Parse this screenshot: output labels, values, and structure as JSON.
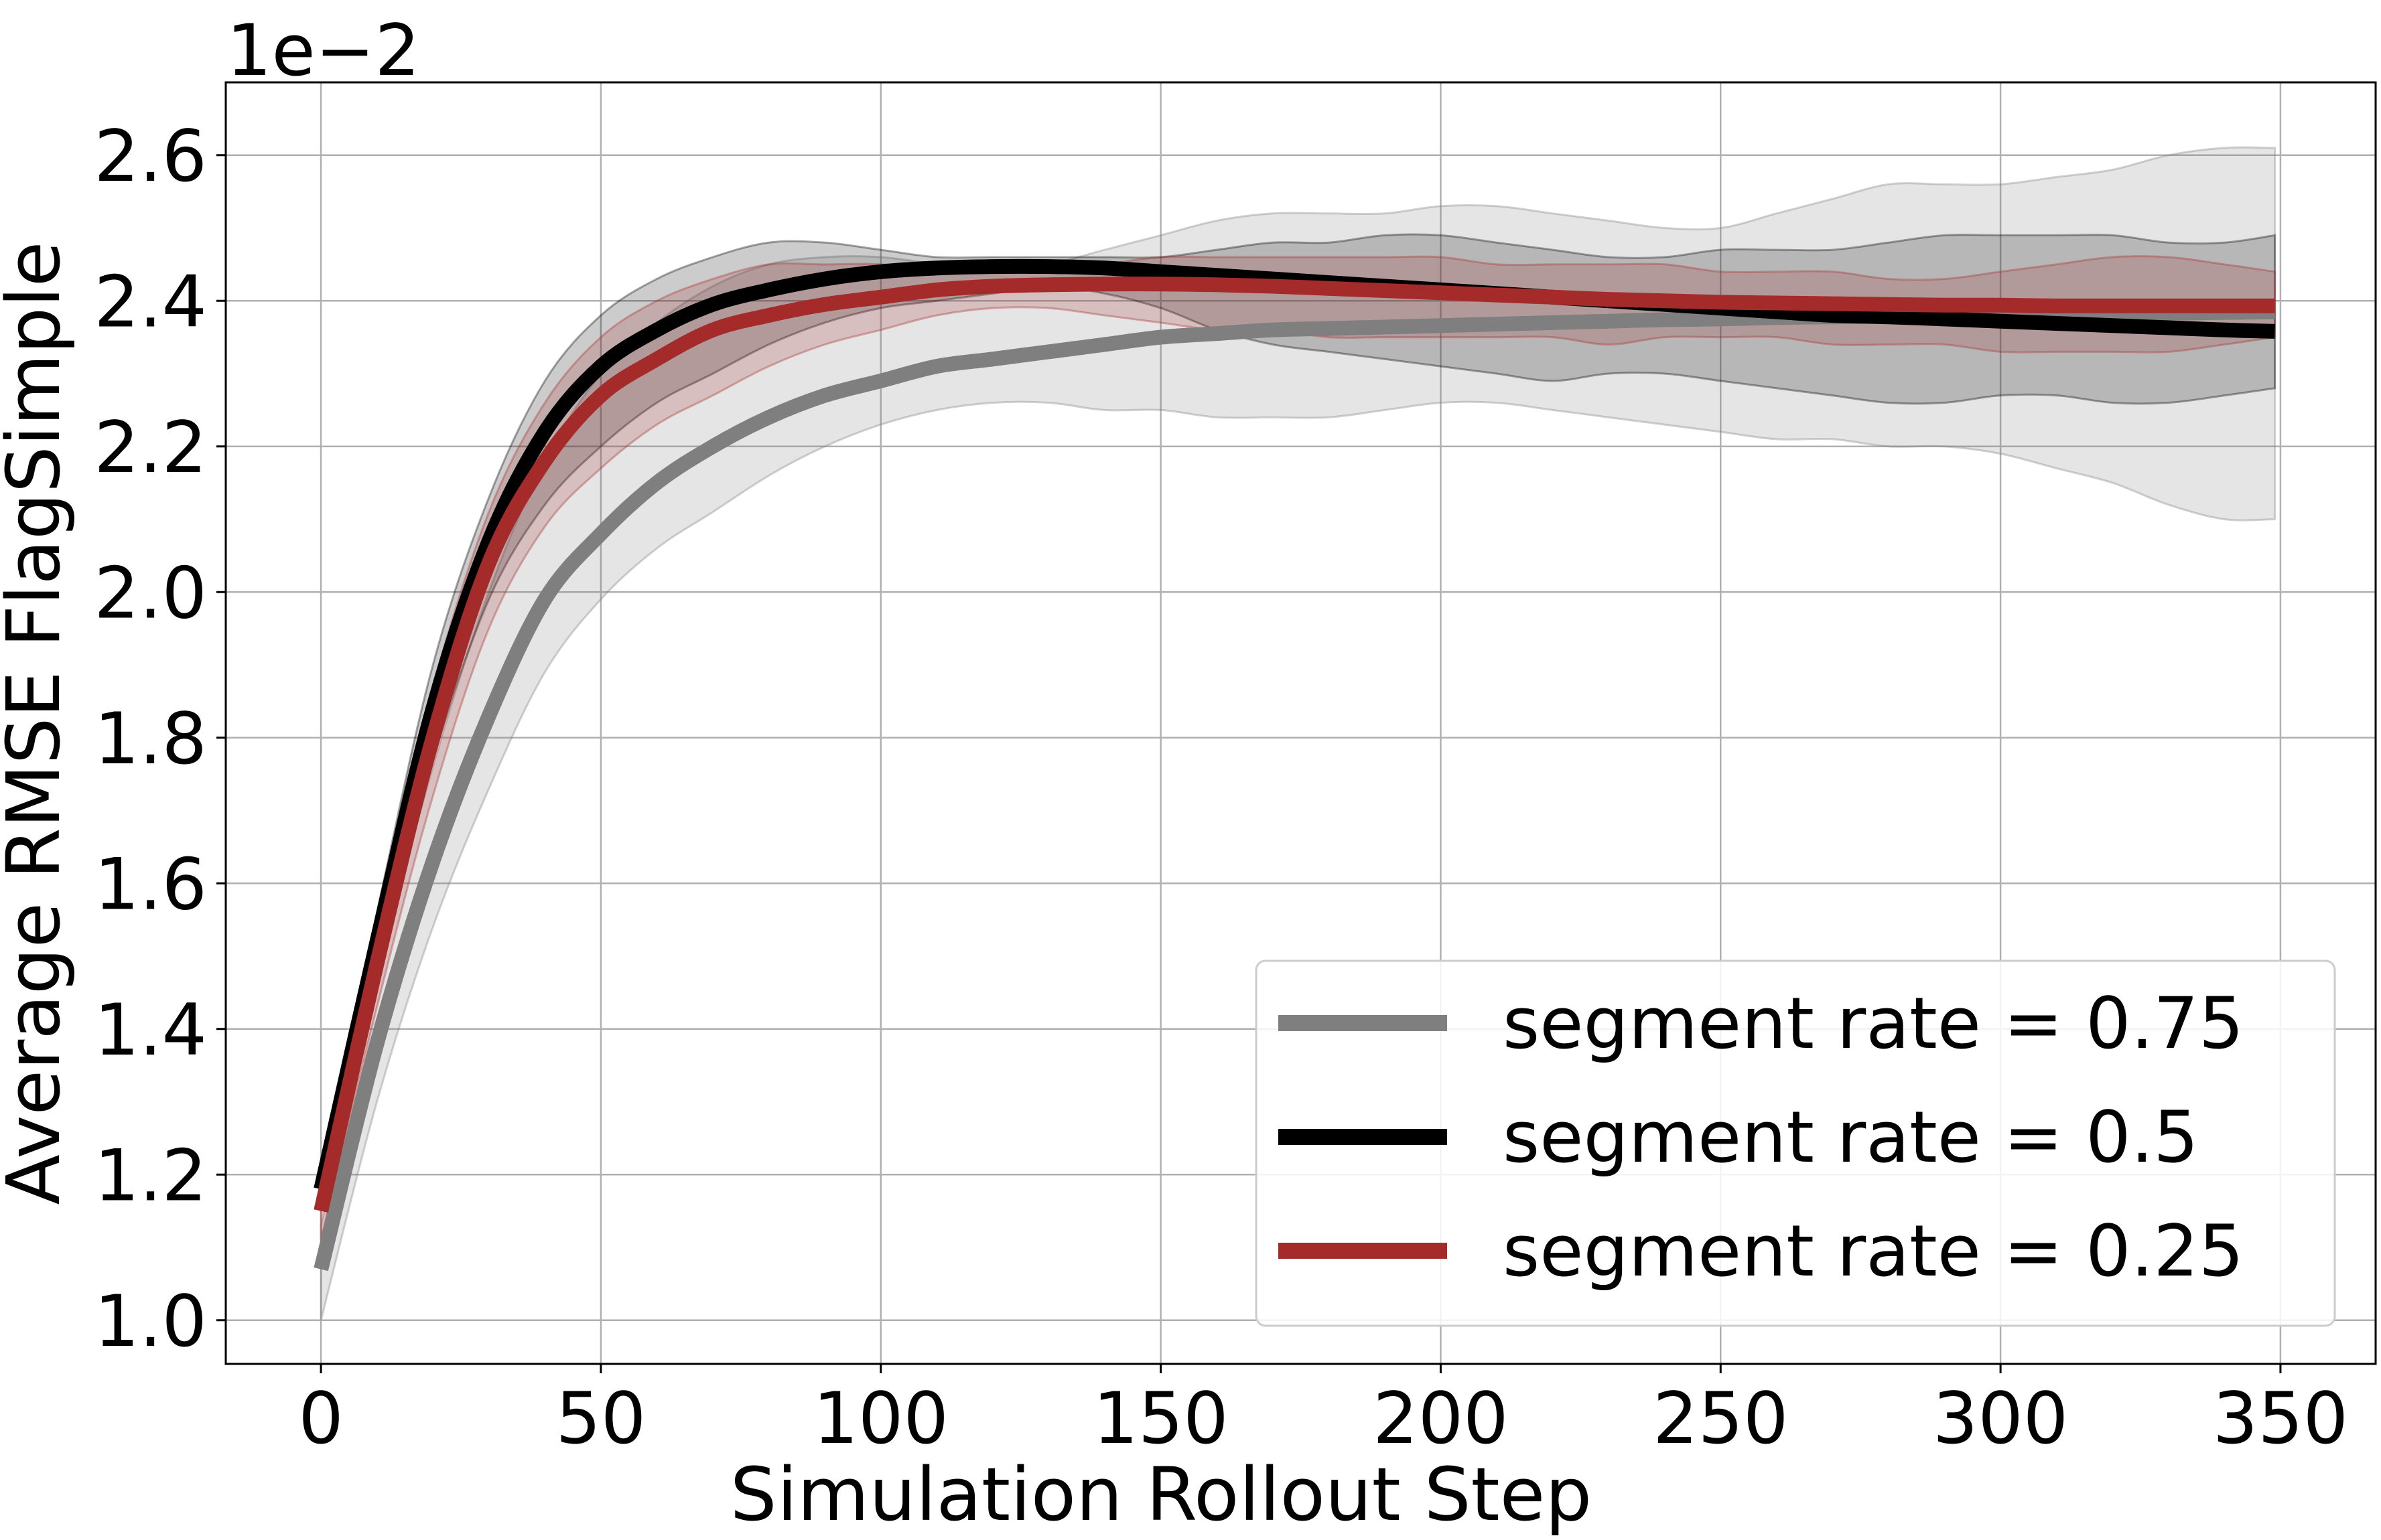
{
  "chart_data": {
    "type": "line",
    "xlabel": "Simulation Rollout Step",
    "ylabel": "Average RMSE FlagSimple",
    "y_offset_label": "1e−2",
    "xlim": [
      -17,
      367
    ],
    "ylim": [
      0.94,
      2.7
    ],
    "xticks": [
      0,
      50,
      100,
      150,
      200,
      250,
      300,
      350
    ],
    "xtick_labels": [
      "0",
      "50",
      "100",
      "150",
      "200",
      "250",
      "300",
      "350"
    ],
    "yticks": [
      1.0,
      1.2,
      1.4,
      1.6,
      1.8,
      2.0,
      2.2,
      2.4,
      2.6
    ],
    "ytick_labels": [
      "1.0",
      "1.2",
      "1.4",
      "1.6",
      "1.8",
      "2.0",
      "2.2",
      "2.4",
      "2.6"
    ],
    "grid": true,
    "legend_position": "lower-right",
    "x": [
      0,
      10,
      20,
      30,
      40,
      50,
      60,
      70,
      80,
      90,
      100,
      110,
      120,
      130,
      140,
      150,
      160,
      170,
      180,
      190,
      200,
      210,
      220,
      230,
      240,
      250,
      260,
      270,
      280,
      290,
      300,
      310,
      320,
      330,
      340,
      349
    ],
    "series": [
      {
        "name": "segment rate = 0.75",
        "color": "#7f7f7f",
        "band_color": "#7f7f7f",
        "values": [
          1.07,
          1.38,
          1.63,
          1.83,
          1.99,
          2.08,
          2.15,
          2.2,
          2.24,
          2.27,
          2.29,
          2.31,
          2.32,
          2.33,
          2.34,
          2.35,
          2.355,
          2.36,
          2.362,
          2.364,
          2.366,
          2.368,
          2.37,
          2.372,
          2.374,
          2.375,
          2.377,
          2.378,
          2.379,
          2.38,
          2.38,
          2.381,
          2.382,
          2.383,
          2.384,
          2.385
        ],
        "lower": [
          1.0,
          1.3,
          1.54,
          1.73,
          1.89,
          1.99,
          2.06,
          2.11,
          2.16,
          2.2,
          2.23,
          2.25,
          2.26,
          2.26,
          2.25,
          2.25,
          2.24,
          2.24,
          2.24,
          2.25,
          2.26,
          2.26,
          2.25,
          2.24,
          2.23,
          2.22,
          2.21,
          2.21,
          2.2,
          2.2,
          2.19,
          2.17,
          2.15,
          2.12,
          2.1,
          2.1
        ],
        "upper": [
          1.13,
          1.47,
          1.76,
          2.0,
          2.18,
          2.3,
          2.37,
          2.42,
          2.45,
          2.46,
          2.46,
          2.45,
          2.44,
          2.45,
          2.47,
          2.49,
          2.51,
          2.52,
          2.52,
          2.52,
          2.53,
          2.53,
          2.52,
          2.51,
          2.5,
          2.5,
          2.52,
          2.54,
          2.56,
          2.56,
          2.56,
          2.57,
          2.58,
          2.6,
          2.61,
          2.61
        ]
      },
      {
        "name": "segment rate = 0.5",
        "color": "#000000",
        "band_color": "#000000",
        "values": [
          1.18,
          1.52,
          1.84,
          2.07,
          2.22,
          2.31,
          2.36,
          2.395,
          2.415,
          2.43,
          2.44,
          2.445,
          2.447,
          2.447,
          2.445,
          2.44,
          2.435,
          2.43,
          2.425,
          2.42,
          2.415,
          2.41,
          2.405,
          2.4,
          2.395,
          2.39,
          2.385,
          2.38,
          2.378,
          2.375,
          2.372,
          2.369,
          2.366,
          2.363,
          2.36,
          2.358
        ],
        "lower": [
          1.17,
          1.48,
          1.77,
          1.99,
          2.12,
          2.2,
          2.26,
          2.3,
          2.34,
          2.37,
          2.39,
          2.4,
          2.41,
          2.42,
          2.41,
          2.39,
          2.36,
          2.34,
          2.33,
          2.32,
          2.31,
          2.3,
          2.29,
          2.3,
          2.3,
          2.29,
          2.28,
          2.27,
          2.26,
          2.26,
          2.27,
          2.27,
          2.26,
          2.26,
          2.27,
          2.28
        ],
        "upper": [
          1.2,
          1.56,
          1.9,
          2.13,
          2.29,
          2.38,
          2.43,
          2.46,
          2.48,
          2.48,
          2.47,
          2.46,
          2.46,
          2.46,
          2.46,
          2.46,
          2.47,
          2.48,
          2.48,
          2.49,
          2.49,
          2.48,
          2.47,
          2.46,
          2.46,
          2.47,
          2.47,
          2.47,
          2.48,
          2.49,
          2.49,
          2.49,
          2.49,
          2.48,
          2.48,
          2.49
        ]
      },
      {
        "name": "segment rate = 0.25",
        "color": "#a52a2a",
        "band_color": "#a52a2a",
        "values": [
          1.15,
          1.49,
          1.8,
          2.04,
          2.18,
          2.27,
          2.32,
          2.36,
          2.38,
          2.395,
          2.405,
          2.415,
          2.42,
          2.422,
          2.423,
          2.423,
          2.422,
          2.42,
          2.417,
          2.414,
          2.411,
          2.408,
          2.405,
          2.402,
          2.4,
          2.398,
          2.397,
          2.396,
          2.395,
          2.394,
          2.394,
          2.393,
          2.393,
          2.393,
          2.393,
          2.393
        ],
        "lower": [
          1.11,
          1.43,
          1.72,
          1.95,
          2.09,
          2.17,
          2.23,
          2.27,
          2.31,
          2.34,
          2.36,
          2.38,
          2.39,
          2.39,
          2.38,
          2.37,
          2.36,
          2.36,
          2.35,
          2.35,
          2.35,
          2.35,
          2.35,
          2.34,
          2.35,
          2.35,
          2.35,
          2.34,
          2.34,
          2.34,
          2.33,
          2.33,
          2.33,
          2.33,
          2.34,
          2.35
        ],
        "upper": [
          1.19,
          1.55,
          1.87,
          2.11,
          2.26,
          2.35,
          2.4,
          2.43,
          2.45,
          2.45,
          2.45,
          2.44,
          2.44,
          2.44,
          2.45,
          2.46,
          2.46,
          2.46,
          2.46,
          2.46,
          2.46,
          2.45,
          2.45,
          2.45,
          2.45,
          2.44,
          2.44,
          2.44,
          2.43,
          2.43,
          2.44,
          2.45,
          2.46,
          2.46,
          2.45,
          2.44
        ]
      }
    ]
  }
}
